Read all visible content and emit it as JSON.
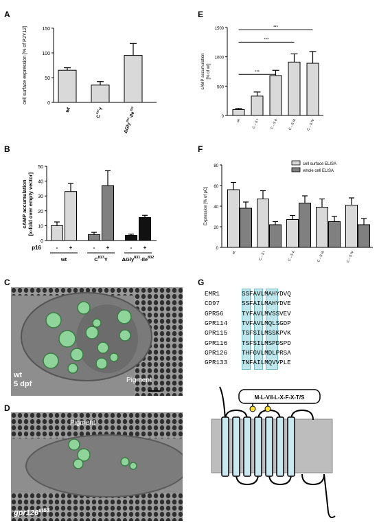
{
  "panels": {
    "A": {
      "letter": "A",
      "chart_data": {
        "type": "bar",
        "categories": [
          "wt",
          "C817Y",
          "ΔGly831-Ile832"
        ],
        "values": [
          65,
          35,
          95
        ],
        "errors": [
          5,
          7,
          24
        ],
        "ylabel": "cell surface expression [% of P2Y12]",
        "ylim": [
          0,
          150
        ],
        "yticks": [
          0,
          50,
          100,
          150
        ],
        "bar_color": "#d9d9d9"
      },
      "cat_labels": [
        {
          "main": "wt",
          "sup": ""
        },
        {
          "main": "C",
          "sup": "817",
          "tail": "Y"
        },
        {
          "main": "ΔGly",
          "sup": "831",
          "mid": "-Ile",
          "sup2": "832"
        }
      ]
    },
    "B": {
      "letter": "B",
      "chart_data": {
        "type": "bar",
        "categories": [
          "wt",
          "C817Y",
          "ΔGly831-Ile832"
        ],
        "series": [
          {
            "name": "-",
            "values": [
              10,
              4,
              3.5
            ],
            "errors": [
              2.5,
              1.5,
              0.8
            ]
          },
          {
            "name": "+",
            "values": [
              33,
              37,
              15.5
            ],
            "errors": [
              5.5,
              10,
              1.5
            ]
          }
        ],
        "ylabel": "cAMP accumulation [x-fold over empty vector]",
        "ylim": [
          0,
          50
        ],
        "yticks": [
          0,
          10,
          20,
          30,
          40,
          50
        ],
        "bar_colors": [
          "#d9d9d9",
          "#d9d9d9",
          "#808080",
          "#808080",
          "#111111",
          "#111111"
        ]
      },
      "p16_label": "p16",
      "signs": [
        "-",
        "+",
        "-",
        "+",
        "-",
        "+"
      ],
      "cat_labels": [
        {
          "main": "wt",
          "sup": ""
        },
        {
          "main": "C",
          "sup": "817",
          "tail": "Y"
        },
        {
          "main": "ΔGly",
          "sup": "831",
          "mid": "-Ile",
          "sup2": "832"
        }
      ]
    },
    "C": {
      "letter": "C",
      "label_line1": "wt",
      "label_line2": "5 dpf",
      "pigment": "Pigment"
    },
    "D": {
      "letter": "D",
      "pigment": "Pigment",
      "genotype_main": "gpr126",
      "genotype_sup": "st63"
    },
    "E": {
      "letter": "E",
      "chart_data": {
        "type": "bar",
        "categories": [
          "wt",
          "C→S I",
          "C→S II",
          "C→S III",
          "C→S IV"
        ],
        "values": [
          100,
          330,
          680,
          910,
          890
        ],
        "errors": [
          20,
          70,
          90,
          140,
          200
        ],
        "ylabel": "cAMP accumulation [% of wt]",
        "ylim": [
          0,
          1500
        ],
        "yticks": [
          0,
          500,
          1000,
          1500
        ],
        "bar_color": "#d9d9d9",
        "significance": [
          {
            "from": "wt",
            "to": "C→S II",
            "label": "***"
          },
          {
            "from": "wt",
            "to": "C→S III",
            "label": "***"
          },
          {
            "from": "wt",
            "to": "C→S IV",
            "label": "***"
          }
        ]
      }
    },
    "F": {
      "letter": "F",
      "chart_data": {
        "type": "bar",
        "categories": [
          "wt",
          "C→S I",
          "C→S II",
          "C→S III",
          "C→S IV"
        ],
        "series": [
          {
            "name": "cell surface ELISA",
            "values": [
              56,
              47,
              27,
              39,
              41
            ],
            "errors": [
              7,
              8,
              4,
              8,
              7
            ],
            "color": "#d9d9d9"
          },
          {
            "name": "whole cell ELISA",
            "values": [
              38,
              22,
              43,
              25,
              22
            ],
            "errors": [
              6,
              3,
              7,
              5,
              6
            ],
            "color": "#808080"
          }
        ],
        "ylabel": "Expression [% of pC]",
        "ylim": [
          0,
          80
        ],
        "yticks": [
          0,
          20,
          40,
          60,
          80
        ],
        "legend": "top-right"
      }
    },
    "G": {
      "letter": "G",
      "sequences": [
        {
          "name": "EMR1",
          "seq": "SSFAVLMAHYDVQ"
        },
        {
          "name": "CD97",
          "seq": "SSFAILMAHYDVE"
        },
        {
          "name": "GPR56",
          "seq": "TYFAVLMVSSVEV"
        },
        {
          "name": "GPR114",
          "seq": "TVFAVLMQLSGDP"
        },
        {
          "name": "GPR115",
          "seq": "TSFSILMSSKPVK"
        },
        {
          "name": "GPR116",
          "seq": "TSFSILMSPDSPD"
        },
        {
          "name": "GPR126",
          "seq": "THFGVLMDLPRSA"
        },
        {
          "name": "GPR133",
          "seq": "TNFAILMQVVPLE"
        }
      ],
      "motif": "M-L-V/I-L-X-F-X-T/S"
    }
  },
  "colors": {
    "highlight": "#bfe6ea",
    "helix_fill": "#c9e8f0",
    "membrane": "#bdbdbd",
    "lipid_dot": "#ffe033",
    "em_bg": "#8a8a8a",
    "em_green": "#8fd49a"
  }
}
